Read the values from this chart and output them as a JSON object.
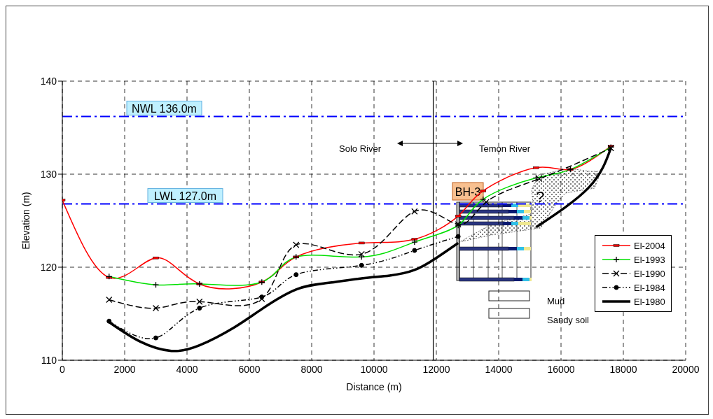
{
  "chart_data": {
    "type": "line",
    "xlabel": "Distance (m)",
    "ylabel": "Elevation (m)",
    "xlim": [
      0,
      20000
    ],
    "ylim": [
      110,
      140
    ],
    "xticks": [
      0,
      2000,
      4000,
      6000,
      8000,
      10000,
      12000,
      14000,
      16000,
      18000,
      20000
    ],
    "yticks": [
      110,
      120,
      130,
      140
    ],
    "grid": true,
    "legend": "right",
    "series": [
      {
        "name": "El-2004",
        "color": "#ff0000",
        "marker": "square",
        "line_style": "solid",
        "x": [
          0,
          1500,
          3000,
          4400,
          6400,
          7500,
          9600,
          11300,
          12700,
          13500,
          15200,
          16300,
          17600
        ],
        "values": [
          127.2,
          118.9,
          121.0,
          118.2,
          118.4,
          121.1,
          122.6,
          123.0,
          125.5,
          128.2,
          130.7,
          130.5,
          133.0
        ]
      },
      {
        "name": "El-1993",
        "color": "#00e000",
        "marker": "cross",
        "line_style": "solid",
        "x": [
          1500,
          3000,
          4400,
          6400,
          7500,
          9600,
          11300,
          12700,
          13500,
          15200,
          16300,
          17600
        ],
        "values": [
          119.0,
          118.1,
          118.2,
          118.4,
          121.1,
          121.1,
          122.7,
          124.5,
          127.3,
          129.6,
          130.5,
          132.9
        ]
      },
      {
        "name": "El-1990",
        "color": "#000000",
        "marker": "x",
        "line_style": "dashed",
        "x": [
          1500,
          3000,
          4400,
          6400,
          7500,
          9600,
          11300,
          12700,
          13600,
          15300,
          17600
        ],
        "values": [
          116.5,
          115.6,
          116.3,
          116.6,
          122.4,
          121.4,
          126.0,
          124.6,
          127.0,
          129.5,
          132.8
        ]
      },
      {
        "name": "El-1984",
        "color": "#000000",
        "marker": "circle",
        "line_style": "dotted",
        "x": [
          1500,
          3000,
          4400,
          6400,
          7500,
          9600,
          11300,
          12700
        ],
        "values": [
          114.2,
          112.4,
          115.6,
          116.8,
          119.2,
          120.2,
          121.8,
          123.3
        ]
      },
      {
        "name": "El-1980",
        "color": "#000000",
        "marker": "none",
        "line_style": "solid",
        "x": [
          1500,
          2500,
          3500,
          4400,
          5500,
          6400,
          7500,
          8500,
          9600,
          10500,
          11300,
          12000,
          12700,
          13500,
          15200,
          16900,
          17600
        ],
        "values": [
          114.1,
          112.0,
          111.0,
          111.6,
          113.5,
          115.5,
          117.6,
          118.3,
          118.8,
          119.1,
          119.7,
          121.0,
          122.6,
          null,
          124.3,
          128.6,
          132.8
        ]
      }
    ],
    "ref_lines": [
      {
        "axis": "y",
        "value": 136.2,
        "label": "NWL 136.0m",
        "color": "#0000ff",
        "line_style": "dashed"
      },
      {
        "axis": "y",
        "value": 126.8,
        "label": "LWL 127.0m",
        "color": "#0000ff",
        "line_style": "dashed"
      },
      {
        "axis": "x",
        "value": 11900,
        "color": "#000000",
        "line_style": "solid"
      }
    ],
    "annotations": [
      "Solo River",
      "Temon River",
      "BH-3",
      "?",
      "Mud",
      "Sandy soil"
    ]
  }
}
